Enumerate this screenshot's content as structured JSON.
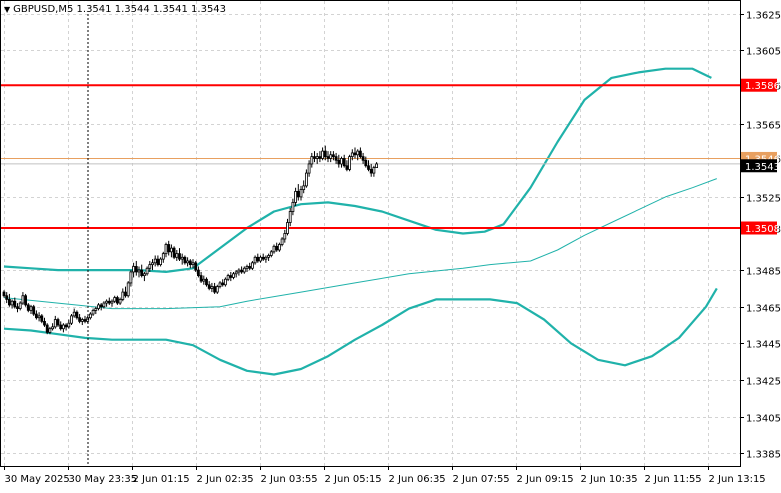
{
  "chart_data": {
    "type": "candlestick",
    "symbol": "GBPUSD,M5",
    "ohlc_readout": "1.3541 1.3544 1.3541 1.3543",
    "y_ticks": [
      "1.3625",
      "1.3605",
      "1.3586",
      "1.3565",
      "1.3546",
      "1.3525",
      "1.3508",
      "1.3485",
      "1.3465",
      "1.3445",
      "1.3425",
      "1.3405",
      "1.3385"
    ],
    "x_ticks": [
      "30 May 2025",
      "30 May 23:35",
      "2 Jun 01:15",
      "2 Jun 02:35",
      "2 Jun 03:55",
      "2 Jun 05:15",
      "2 Jun 06:35",
      "2 Jun 07:55",
      "2 Jun 09:15",
      "2 Jun 10:35",
      "2 Jun 11:55",
      "2 Jun 13:15"
    ],
    "ylim": [
      1.3378,
      1.3632
    ],
    "current_price_label": "1.3543",
    "ask_price_label": "1.3546",
    "levels": [
      {
        "label": "1.3586",
        "value": 1.3586,
        "color": "#ff0000"
      },
      {
        "label": "1.3508",
        "value": 1.3508,
        "color": "#ff0000"
      }
    ],
    "colors": {
      "candle": "#000000",
      "bollinger": "#20b2aa",
      "moving_average": "#20b2aa",
      "level_line": "#ff0000",
      "ask_line": "#e8a060",
      "bid_line": "#c0c0c0",
      "grid": "#d3d3d3"
    },
    "bollinger_upper": [
      [
        0,
        1.3487
      ],
      [
        10,
        1.3486
      ],
      [
        20,
        1.3485
      ],
      [
        30,
        1.3485
      ],
      [
        40,
        1.3485
      ],
      [
        50,
        1.3485
      ],
      [
        60,
        1.3484
      ],
      [
        70,
        1.3486
      ],
      [
        80,
        1.3497
      ],
      [
        90,
        1.3508
      ],
      [
        100,
        1.3517
      ],
      [
        110,
        1.3521
      ],
      [
        120,
        1.3522
      ],
      [
        130,
        1.352
      ],
      [
        140,
        1.3517
      ],
      [
        150,
        1.3512
      ],
      [
        160,
        1.3507
      ],
      [
        170,
        1.3505
      ],
      [
        178,
        1.3506
      ],
      [
        185,
        1.351
      ],
      [
        195,
        1.353
      ],
      [
        205,
        1.3555
      ],
      [
        215,
        1.3578
      ],
      [
        225,
        1.359
      ],
      [
        235,
        1.3593
      ],
      [
        245,
        1.3595
      ],
      [
        255,
        1.3595
      ],
      [
        262,
        1.359
      ]
    ],
    "bollinger_lower": [
      [
        0,
        1.3453
      ],
      [
        10,
        1.3452
      ],
      [
        20,
        1.345
      ],
      [
        30,
        1.3448
      ],
      [
        40,
        1.3447
      ],
      [
        50,
        1.3447
      ],
      [
        60,
        1.3447
      ],
      [
        70,
        1.3444
      ],
      [
        80,
        1.3436
      ],
      [
        90,
        1.343
      ],
      [
        100,
        1.3428
      ],
      [
        110,
        1.3431
      ],
      [
        120,
        1.3438
      ],
      [
        130,
        1.3447
      ],
      [
        140,
        1.3455
      ],
      [
        150,
        1.3464
      ],
      [
        160,
        1.3469
      ],
      [
        170,
        1.3469
      ],
      [
        180,
        1.3469
      ],
      [
        190,
        1.3467
      ],
      [
        200,
        1.3458
      ],
      [
        210,
        1.3445
      ],
      [
        220,
        1.3436
      ],
      [
        230,
        1.3433
      ],
      [
        240,
        1.3438
      ],
      [
        250,
        1.3448
      ],
      [
        260,
        1.3465
      ],
      [
        264,
        1.3475
      ]
    ],
    "moving_average": [
      [
        0,
        1.347
      ],
      [
        20,
        1.3467
      ],
      [
        40,
        1.3464
      ],
      [
        60,
        1.3464
      ],
      [
        80,
        1.3465
      ],
      [
        90,
        1.3468
      ],
      [
        110,
        1.3473
      ],
      [
        130,
        1.3478
      ],
      [
        150,
        1.3483
      ],
      [
        170,
        1.3486
      ],
      [
        180,
        1.3488
      ],
      [
        195,
        1.349
      ],
      [
        205,
        1.3496
      ],
      [
        215,
        1.3504
      ],
      [
        225,
        1.3511
      ],
      [
        235,
        1.3518
      ],
      [
        245,
        1.3525
      ],
      [
        255,
        1.353
      ],
      [
        264,
        1.3535
      ]
    ],
    "series": [
      {
        "name": "GBPUSD,M5",
        "ohlc": [
          [
            1.3473,
            1.3474,
            1.347,
            1.3471
          ],
          [
            1.3471,
            1.3473,
            1.3467,
            1.3469
          ],
          [
            1.3469,
            1.3472,
            1.3465,
            1.3466
          ],
          [
            1.3466,
            1.3469,
            1.3464,
            1.3468
          ],
          [
            1.3468,
            1.347,
            1.3464,
            1.3465
          ],
          [
            1.3465,
            1.3467,
            1.3462,
            1.3464
          ],
          [
            1.3464,
            1.3468,
            1.3463,
            1.3467
          ],
          [
            1.3467,
            1.3473,
            1.3466,
            1.3471
          ],
          [
            1.3471,
            1.3472,
            1.3465,
            1.3466
          ],
          [
            1.3466,
            1.3467,
            1.3462,
            1.3463
          ],
          [
            1.3463,
            1.3466,
            1.3461,
            1.3465
          ],
          [
            1.3465,
            1.3466,
            1.346,
            1.3461
          ],
          [
            1.3461,
            1.3463,
            1.3458,
            1.3459
          ],
          [
            1.3459,
            1.3462,
            1.3457,
            1.346
          ],
          [
            1.346,
            1.3461,
            1.3456,
            1.3457
          ],
          [
            1.3457,
            1.3459,
            1.3454,
            1.3455
          ],
          [
            1.3455,
            1.3456,
            1.345,
            1.3451
          ],
          [
            1.3451,
            1.3454,
            1.345,
            1.3453
          ],
          [
            1.3453,
            1.3456,
            1.3452,
            1.3454
          ],
          [
            1.3454,
            1.346,
            1.3453,
            1.3458
          ],
          [
            1.3458,
            1.3459,
            1.3454,
            1.3455
          ],
          [
            1.3455,
            1.3457,
            1.3452,
            1.3453
          ],
          [
            1.3453,
            1.3456,
            1.3451,
            1.3455
          ],
          [
            1.3455,
            1.3456,
            1.3452,
            1.3454
          ],
          [
            1.3454,
            1.3458,
            1.3453,
            1.3456
          ],
          [
            1.3456,
            1.3461,
            1.3455,
            1.346
          ],
          [
            1.346,
            1.3464,
            1.3459,
            1.3462
          ],
          [
            1.3462,
            1.3463,
            1.3458,
            1.3459
          ],
          [
            1.3459,
            1.3461,
            1.3456,
            1.3457
          ],
          [
            1.3457,
            1.3459,
            1.3455,
            1.3458
          ],
          [
            1.3458,
            1.346,
            1.3456,
            1.3457
          ],
          [
            1.3457,
            1.346,
            1.3456,
            1.3459
          ],
          [
            1.3459,
            1.3462,
            1.3458,
            1.3461
          ],
          [
            1.3461,
            1.3464,
            1.346,
            1.3463
          ],
          [
            1.3463,
            1.3465,
            1.3461,
            1.3464
          ],
          [
            1.3464,
            1.3467,
            1.3463,
            1.3466
          ],
          [
            1.3466,
            1.3467,
            1.3463,
            1.3465
          ],
          [
            1.3465,
            1.3468,
            1.3464,
            1.3467
          ],
          [
            1.3467,
            1.3469,
            1.3465,
            1.3468
          ],
          [
            1.3468,
            1.347,
            1.3466,
            1.3467
          ],
          [
            1.3467,
            1.3469,
            1.3465,
            1.3468
          ],
          [
            1.3468,
            1.3471,
            1.3467,
            1.347
          ],
          [
            1.347,
            1.3471,
            1.3466,
            1.3467
          ],
          [
            1.3467,
            1.347,
            1.3466,
            1.3469
          ],
          [
            1.3469,
            1.3475,
            1.3468,
            1.3473
          ],
          [
            1.3473,
            1.3476,
            1.347,
            1.3471
          ],
          [
            1.3471,
            1.3479,
            1.347,
            1.3478
          ],
          [
            1.3478,
            1.3485,
            1.3476,
            1.3484
          ],
          [
            1.3484,
            1.3489,
            1.3481,
            1.3487
          ],
          [
            1.3487,
            1.349,
            1.3482,
            1.3484
          ],
          [
            1.3484,
            1.3487,
            1.3481,
            1.3485
          ],
          [
            1.3485,
            1.3488,
            1.3481,
            1.3482
          ],
          [
            1.3482,
            1.3484,
            1.3479,
            1.3483
          ],
          [
            1.3483,
            1.3487,
            1.3482,
            1.3486
          ],
          [
            1.3486,
            1.349,
            1.3484,
            1.3488
          ],
          [
            1.3488,
            1.3491,
            1.3485,
            1.3489
          ],
          [
            1.3489,
            1.3493,
            1.3487,
            1.3491
          ],
          [
            1.3491,
            1.3493,
            1.3487,
            1.3488
          ],
          [
            1.3488,
            1.3492,
            1.3487,
            1.3491
          ],
          [
            1.3491,
            1.3495,
            1.3489,
            1.3494
          ],
          [
            1.3494,
            1.35,
            1.3492,
            1.3499
          ],
          [
            1.3499,
            1.3501,
            1.3493,
            1.3495
          ],
          [
            1.3495,
            1.3499,
            1.3492,
            1.3497
          ],
          [
            1.3497,
            1.3498,
            1.3491,
            1.3492
          ],
          [
            1.3492,
            1.3496,
            1.349,
            1.3494
          ],
          [
            1.3494,
            1.3497,
            1.349,
            1.3491
          ],
          [
            1.3491,
            1.3494,
            1.3488,
            1.3492
          ],
          [
            1.3492,
            1.3493,
            1.3488,
            1.3489
          ],
          [
            1.3489,
            1.3492,
            1.3487,
            1.349
          ],
          [
            1.349,
            1.3491,
            1.3486,
            1.3488
          ],
          [
            1.3488,
            1.3491,
            1.3486,
            1.3489
          ],
          [
            1.3489,
            1.349,
            1.3484,
            1.3485
          ],
          [
            1.3485,
            1.3487,
            1.3481,
            1.3482
          ],
          [
            1.3482,
            1.3484,
            1.3478,
            1.3479
          ],
          [
            1.3479,
            1.3482,
            1.3477,
            1.348
          ],
          [
            1.348,
            1.3481,
            1.3476,
            1.3477
          ],
          [
            1.3477,
            1.3479,
            1.3474,
            1.3475
          ],
          [
            1.3475,
            1.3478,
            1.3473,
            1.3476
          ],
          [
            1.3476,
            1.3478,
            1.3472,
            1.3473
          ],
          [
            1.3473,
            1.3477,
            1.3472,
            1.3476
          ],
          [
            1.3476,
            1.3479,
            1.3475,
            1.3478
          ],
          [
            1.3478,
            1.348,
            1.3476,
            1.3477
          ],
          [
            1.3477,
            1.3481,
            1.3476,
            1.348
          ],
          [
            1.348,
            1.3483,
            1.3479,
            1.3482
          ],
          [
            1.3482,
            1.3484,
            1.3479,
            1.3481
          ],
          [
            1.3481,
            1.3484,
            1.348,
            1.3483
          ],
          [
            1.3483,
            1.3485,
            1.3481,
            1.3484
          ],
          [
            1.3484,
            1.3486,
            1.3482,
            1.3485
          ],
          [
            1.3485,
            1.3487,
            1.3483,
            1.3484
          ],
          [
            1.3484,
            1.3487,
            1.3483,
            1.3486
          ],
          [
            1.3486,
            1.3488,
            1.3484,
            1.3487
          ],
          [
            1.3487,
            1.3489,
            1.3485,
            1.3486
          ],
          [
            1.3486,
            1.349,
            1.3485,
            1.3489
          ],
          [
            1.3489,
            1.3493,
            1.3488,
            1.3492
          ],
          [
            1.3492,
            1.3494,
            1.3489,
            1.349
          ],
          [
            1.349,
            1.3493,
            1.3489,
            1.3492
          ],
          [
            1.3492,
            1.3494,
            1.349,
            1.3491
          ],
          [
            1.3491,
            1.3493,
            1.3489,
            1.3492
          ],
          [
            1.3492,
            1.3494,
            1.349,
            1.3493
          ],
          [
            1.3493,
            1.3496,
            1.3492,
            1.3495
          ],
          [
            1.3495,
            1.3499,
            1.3494,
            1.3498
          ],
          [
            1.3498,
            1.35,
            1.3495,
            1.3496
          ],
          [
            1.3496,
            1.35,
            1.3495,
            1.3499
          ],
          [
            1.3499,
            1.3503,
            1.3498,
            1.3502
          ],
          [
            1.3502,
            1.3507,
            1.35,
            1.3505
          ],
          [
            1.3505,
            1.3513,
            1.3504,
            1.3511
          ],
          [
            1.3511,
            1.3519,
            1.3509,
            1.3517
          ],
          [
            1.3517,
            1.3524,
            1.3515,
            1.3522
          ],
          [
            1.3522,
            1.353,
            1.352,
            1.3528
          ],
          [
            1.3528,
            1.3532,
            1.3523,
            1.3525
          ],
          [
            1.3525,
            1.3531,
            1.3523,
            1.3529
          ],
          [
            1.3529,
            1.3534,
            1.3527,
            1.3531
          ],
          [
            1.3531,
            1.354,
            1.353,
            1.3538
          ],
          [
            1.3538,
            1.3545,
            1.3536,
            1.3543
          ],
          [
            1.3543,
            1.3549,
            1.3541,
            1.3547
          ],
          [
            1.3547,
            1.355,
            1.3544,
            1.3546
          ],
          [
            1.3546,
            1.3549,
            1.3543,
            1.3547
          ],
          [
            1.3547,
            1.355,
            1.3544,
            1.3546
          ],
          [
            1.3546,
            1.3552,
            1.3545,
            1.355
          ],
          [
            1.355,
            1.3553,
            1.3545,
            1.3547
          ],
          [
            1.3547,
            1.355,
            1.3544,
            1.3546
          ],
          [
            1.3546,
            1.355,
            1.3544,
            1.3548
          ],
          [
            1.3548,
            1.355,
            1.3545,
            1.3547
          ],
          [
            1.3547,
            1.3549,
            1.3543,
            1.3545
          ],
          [
            1.3545,
            1.3548,
            1.3541,
            1.3543
          ],
          [
            1.3543,
            1.3547,
            1.3541,
            1.3546
          ],
          [
            1.3546,
            1.3548,
            1.3541,
            1.3542
          ],
          [
            1.3542,
            1.3545,
            1.3539,
            1.354
          ],
          [
            1.354,
            1.3548,
            1.3539,
            1.3547
          ],
          [
            1.3547,
            1.3551,
            1.3545,
            1.3549
          ],
          [
            1.3549,
            1.3552,
            1.3546,
            1.3548
          ],
          [
            1.3548,
            1.3551,
            1.3545,
            1.355
          ],
          [
            1.355,
            1.3552,
            1.3546,
            1.3547
          ],
          [
            1.3547,
            1.3549,
            1.3543,
            1.3545
          ],
          [
            1.3545,
            1.3547,
            1.3541,
            1.3542
          ],
          [
            1.3542,
            1.3545,
            1.3539,
            1.354
          ],
          [
            1.354,
            1.3543,
            1.3536,
            1.3538
          ],
          [
            1.3538,
            1.3542,
            1.3536,
            1.3541
          ],
          [
            1.3541,
            1.3544,
            1.3541,
            1.3543
          ]
        ]
      }
    ]
  }
}
